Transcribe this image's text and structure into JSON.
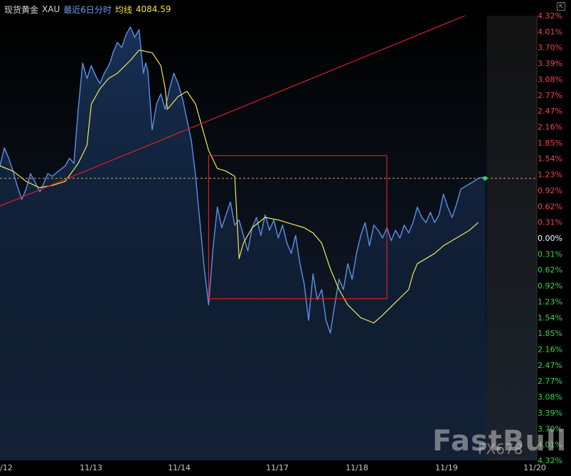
{
  "header": {
    "instrument": "现货黄金",
    "symbol": "XAU",
    "period": "最近6日分时",
    "ma_label": "均线",
    "ma_value": "4084.59"
  },
  "watermark": {
    "brand": "FastBull",
    "sub": "FX678"
  },
  "colors": {
    "background": "#000000",
    "price_line": "#5b8fe6",
    "average_line": "#f0e65a",
    "annotation": "#d8202a",
    "up_label": "#e84a4a",
    "down_label": "#3ed24a",
    "zero_label": "#ffffff",
    "current_dot": "#32d16a"
  },
  "chart_data": {
    "type": "line",
    "title": "",
    "y_unit": "percent change",
    "ylim": [
      -4.32,
      4.32
    ],
    "grid": false,
    "x_tick_labels": [
      "/12",
      "11/13",
      "11/14",
      "11/17",
      "11/18",
      "11/19",
      "11/20"
    ],
    "y_tick_labels": [
      "4.32%",
      "4.01%",
      "3.70%",
      "3.39%",
      "3.08%",
      "2.77%",
      "2.47%",
      "2.16%",
      "1.85%",
      "1.54%",
      "1.23%",
      "0.92%",
      "0.62%",
      "0.31%",
      "0.00%",
      "0.31%",
      "0.62%",
      "0.92%",
      "1.23%",
      "1.54%",
      "1.85%",
      "2.16%",
      "2.47%",
      "2.77%",
      "3.08%",
      "3.39%",
      "3.70%",
      "4.01%",
      "4.32%"
    ],
    "current_value_percent": 1.16,
    "series": [
      {
        "name": "",
        "style": "price",
        "x": [
          0.0,
          0.1,
          0.2,
          0.3,
          0.4,
          0.5,
          0.6,
          0.7,
          0.8,
          0.85,
          0.92,
          1.0,
          1.1,
          1.2,
          1.35,
          1.5,
          1.6,
          1.7,
          1.8,
          1.9,
          2.0,
          2.1,
          2.2,
          2.3,
          2.4,
          2.5,
          2.55,
          2.6,
          2.7,
          2.8,
          2.9,
          3.0,
          3.1,
          3.2,
          3.25,
          3.3,
          3.35,
          3.4,
          3.5,
          3.6,
          3.7,
          3.8,
          3.85,
          3.9,
          4.0,
          4.1,
          4.2,
          4.3,
          4.4,
          4.5,
          4.6,
          4.7,
          4.8,
          4.9,
          5.0,
          5.1,
          5.2,
          5.3,
          5.4,
          5.5,
          5.6,
          5.7,
          5.8,
          5.9,
          6.0,
          6.1,
          6.2,
          6.3,
          6.4,
          6.5,
          6.6,
          6.7,
          6.8,
          6.9,
          7.0,
          7.1,
          7.2,
          7.3,
          7.4,
          7.5,
          7.6,
          7.7,
          7.8,
          7.9,
          8.0,
          8.1,
          8.2,
          8.3,
          8.4,
          8.5,
          8.6,
          8.7,
          8.8,
          8.9,
          9.0,
          9.1,
          9.2,
          9.3,
          9.4,
          9.5,
          9.6,
          9.7,
          9.8,
          9.9,
          10.0,
          10.1,
          10.2,
          10.3,
          10.4,
          10.5,
          10.6,
          10.7,
          10.8,
          10.9,
          11.0,
          11.1,
          11.16
        ],
        "values": [
          1.4,
          1.75,
          1.55,
          1.3,
          1.0,
          0.75,
          0.95,
          1.25,
          1.1,
          1.0,
          0.9,
          1.05,
          1.25,
          1.2,
          1.3,
          1.4,
          1.55,
          1.45,
          2.5,
          3.4,
          3.1,
          3.35,
          3.15,
          3.0,
          3.2,
          3.35,
          3.45,
          3.6,
          3.8,
          3.7,
          3.95,
          4.1,
          3.9,
          4.05,
          3.6,
          3.2,
          3.4,
          3.25,
          2.1,
          2.6,
          2.8,
          2.5,
          2.7,
          2.9,
          3.2,
          3.0,
          2.7,
          2.3,
          1.9,
          1.2,
          0.3,
          -0.6,
          -1.3,
          -0.2,
          0.6,
          0.2,
          0.45,
          0.7,
          0.25,
          0.35,
          0.05,
          -0.25,
          0.2,
          0.4,
          0.05,
          0.45,
          0.15,
          0.35,
          0.0,
          0.25,
          -0.1,
          -0.3,
          0.05,
          -0.5,
          -0.9,
          -1.6,
          -0.7,
          -1.2,
          -1.0,
          -1.6,
          -1.85,
          -1.3,
          -0.8,
          -1.0,
          -0.5,
          -0.8,
          -0.3,
          0.05,
          0.3,
          -0.15,
          0.25,
          0.15,
          0.0,
          0.2,
          -0.05,
          0.15,
          0.0,
          0.25,
          0.1,
          0.3,
          0.6,
          0.4,
          0.3,
          0.5,
          0.3,
          0.45,
          0.85,
          0.6,
          0.4,
          0.65,
          0.95,
          1.0,
          1.05,
          1.1,
          1.16,
          1.18,
          1.16
        ]
      },
      {
        "name": "均线",
        "style": "average",
        "x": [
          0.0,
          0.3,
          0.6,
          0.9,
          1.2,
          1.5,
          1.8,
          2.0,
          2.1,
          2.3,
          2.5,
          2.7,
          3.0,
          3.2,
          3.5,
          3.7,
          3.8,
          3.85,
          4.1,
          4.3,
          4.5,
          4.8,
          5.0,
          5.2,
          5.4,
          5.5,
          5.6,
          5.8,
          6.1,
          6.4,
          6.8,
          7.0,
          7.2,
          7.4,
          7.6,
          7.8,
          8.0,
          8.3,
          8.6,
          8.8,
          9.1,
          9.4,
          9.5,
          9.6,
          10.0,
          10.2,
          10.5,
          10.8,
          11.0
        ],
        "values": [
          1.4,
          1.3,
          1.1,
          0.98,
          1.02,
          1.1,
          1.45,
          1.8,
          2.6,
          2.9,
          3.1,
          3.2,
          3.45,
          3.65,
          3.6,
          3.35,
          2.9,
          2.5,
          2.75,
          2.85,
          2.6,
          1.7,
          1.35,
          1.3,
          1.2,
          -0.4,
          -0.1,
          0.2,
          0.4,
          0.35,
          0.25,
          0.2,
          0.1,
          -0.1,
          -0.6,
          -1.0,
          -1.3,
          -1.55,
          -1.65,
          -1.5,
          -1.25,
          -1.0,
          -0.7,
          -0.5,
          -0.3,
          -0.15,
          0.0,
          0.15,
          0.3
        ]
      }
    ],
    "annotations": [
      {
        "type": "trendline",
        "from": [
          0.0,
          0.62
        ],
        "to": [
          10.7,
          4.32
        ]
      },
      {
        "type": "rectangle",
        "x": [
          4.8,
          8.9
        ],
        "y": [
          -1.18,
          1.6
        ]
      },
      {
        "type": "hline",
        "y": 1.16,
        "style": "dashed"
      }
    ]
  }
}
